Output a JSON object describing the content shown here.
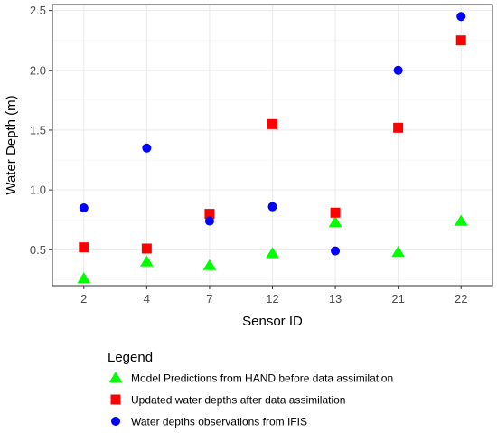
{
  "chart_data": {
    "type": "scatter",
    "categories": [
      "2",
      "4",
      "7",
      "12",
      "13",
      "21",
      "22"
    ],
    "xlabel": "Sensor ID",
    "ylabel": "Water Depth (m)",
    "ylim": [
      0.2,
      2.55
    ],
    "yticks": [
      "0.5",
      "1.0",
      "1.5",
      "2.0",
      "2.5"
    ],
    "grid": true,
    "legend_title": "Legend",
    "legend_position": "bottom",
    "series": [
      {
        "name": "Model Predictions from HAND before data assimilation",
        "marker": "triangle",
        "color": "#00ff00",
        "values": [
          0.26,
          0.4,
          0.37,
          0.47,
          0.73,
          0.48,
          0.74
        ]
      },
      {
        "name": "Updated water depths after data assimilation",
        "marker": "square",
        "color": "#ff0000",
        "values": [
          0.52,
          0.51,
          0.8,
          1.55,
          0.81,
          1.52,
          2.25
        ]
      },
      {
        "name": "Water depths observations from IFIS",
        "marker": "circle",
        "color": "#0000ff",
        "values": [
          0.85,
          1.35,
          0.74,
          0.86,
          0.49,
          2.0,
          2.45
        ]
      }
    ]
  }
}
